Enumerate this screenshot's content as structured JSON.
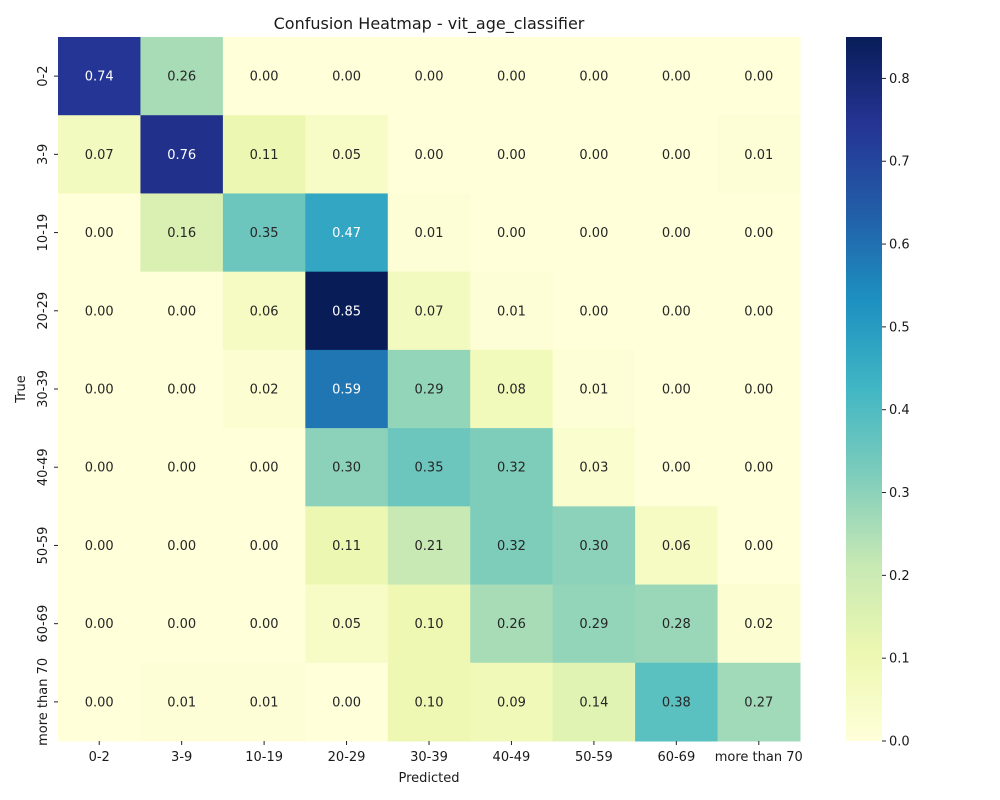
{
  "chart_data": {
    "type": "heatmap",
    "title": "Confusion Heatmap - vit_age_classifier",
    "xlabel": "Predicted",
    "ylabel": "True",
    "x_categories": [
      "0-2",
      "3-9",
      "10-19",
      "20-29",
      "30-39",
      "40-49",
      "50-59",
      "60-69",
      "more than 70"
    ],
    "y_categories": [
      "0-2",
      "3-9",
      "10-19",
      "20-29",
      "30-39",
      "40-49",
      "50-59",
      "60-69",
      "more than 70"
    ],
    "values": [
      [
        0.74,
        0.26,
        0.0,
        0.0,
        0.0,
        0.0,
        0.0,
        0.0,
        0.0
      ],
      [
        0.07,
        0.76,
        0.11,
        0.05,
        0.0,
        0.0,
        0.0,
        0.0,
        0.01
      ],
      [
        0.0,
        0.16,
        0.35,
        0.47,
        0.01,
        0.0,
        0.0,
        0.0,
        0.0
      ],
      [
        0.0,
        0.0,
        0.06,
        0.85,
        0.07,
        0.01,
        0.0,
        0.0,
        0.0
      ],
      [
        0.0,
        0.0,
        0.02,
        0.59,
        0.29,
        0.08,
        0.01,
        0.0,
        0.0
      ],
      [
        0.0,
        0.0,
        0.0,
        0.3,
        0.35,
        0.32,
        0.03,
        0.0,
        0.0
      ],
      [
        0.0,
        0.0,
        0.0,
        0.11,
        0.21,
        0.32,
        0.3,
        0.06,
        0.0
      ],
      [
        0.0,
        0.0,
        0.0,
        0.05,
        0.1,
        0.26,
        0.29,
        0.28,
        0.02
      ],
      [
        0.0,
        0.01,
        0.01,
        0.0,
        0.1,
        0.09,
        0.14,
        0.38,
        0.27
      ]
    ],
    "value_format_decimals": 2,
    "colorbar": {
      "vmin": 0.0,
      "vmax": 0.85,
      "ticks": [
        "0.0",
        "0.1",
        "0.2",
        "0.3",
        "0.4",
        "0.5",
        "0.6",
        "0.7",
        "0.8"
      ],
      "colormap": "YlGnBu"
    }
  }
}
